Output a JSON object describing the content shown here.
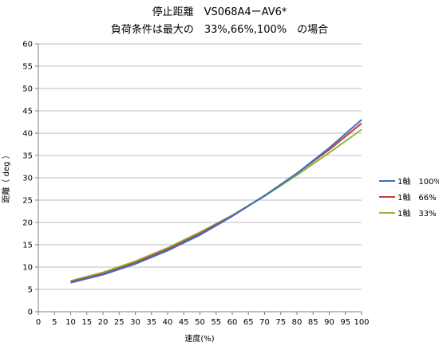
{
  "chart_data": {
    "type": "line",
    "title_lines": [
      "停止距離　VS068A4ーAV6*",
      "負荷条件は最大の　33%,66%,100%　の場合"
    ],
    "xlabel": "速度(%)",
    "ylabel": "距離（ deg ）",
    "xlim": [
      0,
      100
    ],
    "ylim": [
      0,
      60
    ],
    "x_ticks": [
      0,
      5,
      10,
      15,
      20,
      25,
      30,
      35,
      40,
      45,
      50,
      55,
      60,
      65,
      70,
      75,
      80,
      85,
      90,
      95,
      100
    ],
    "y_ticks": [
      0,
      5,
      10,
      15,
      20,
      25,
      30,
      35,
      40,
      45,
      50,
      55,
      60
    ],
    "grid": "horizontal",
    "legend_position": "right",
    "x": [
      10,
      20,
      30,
      40,
      50,
      60,
      70,
      80,
      90,
      100
    ],
    "series": [
      {
        "name": "1軸　100%",
        "color": "#3b6fc4",
        "values": [
          6.5,
          8.3,
          10.7,
          13.7,
          17.2,
          21.4,
          26.0,
          31.0,
          36.7,
          43.0
        ]
      },
      {
        "name": "1軸　66%",
        "color": "#c6403a",
        "values": [
          6.7,
          8.5,
          11.0,
          14.0,
          17.5,
          21.5,
          26.0,
          31.0,
          36.3,
          42.2
        ]
      },
      {
        "name": "1軸　33%",
        "color": "#8db63a",
        "values": [
          6.9,
          8.8,
          11.3,
          14.3,
          17.8,
          21.6,
          25.9,
          30.6,
          35.6,
          40.8
        ]
      }
    ]
  }
}
